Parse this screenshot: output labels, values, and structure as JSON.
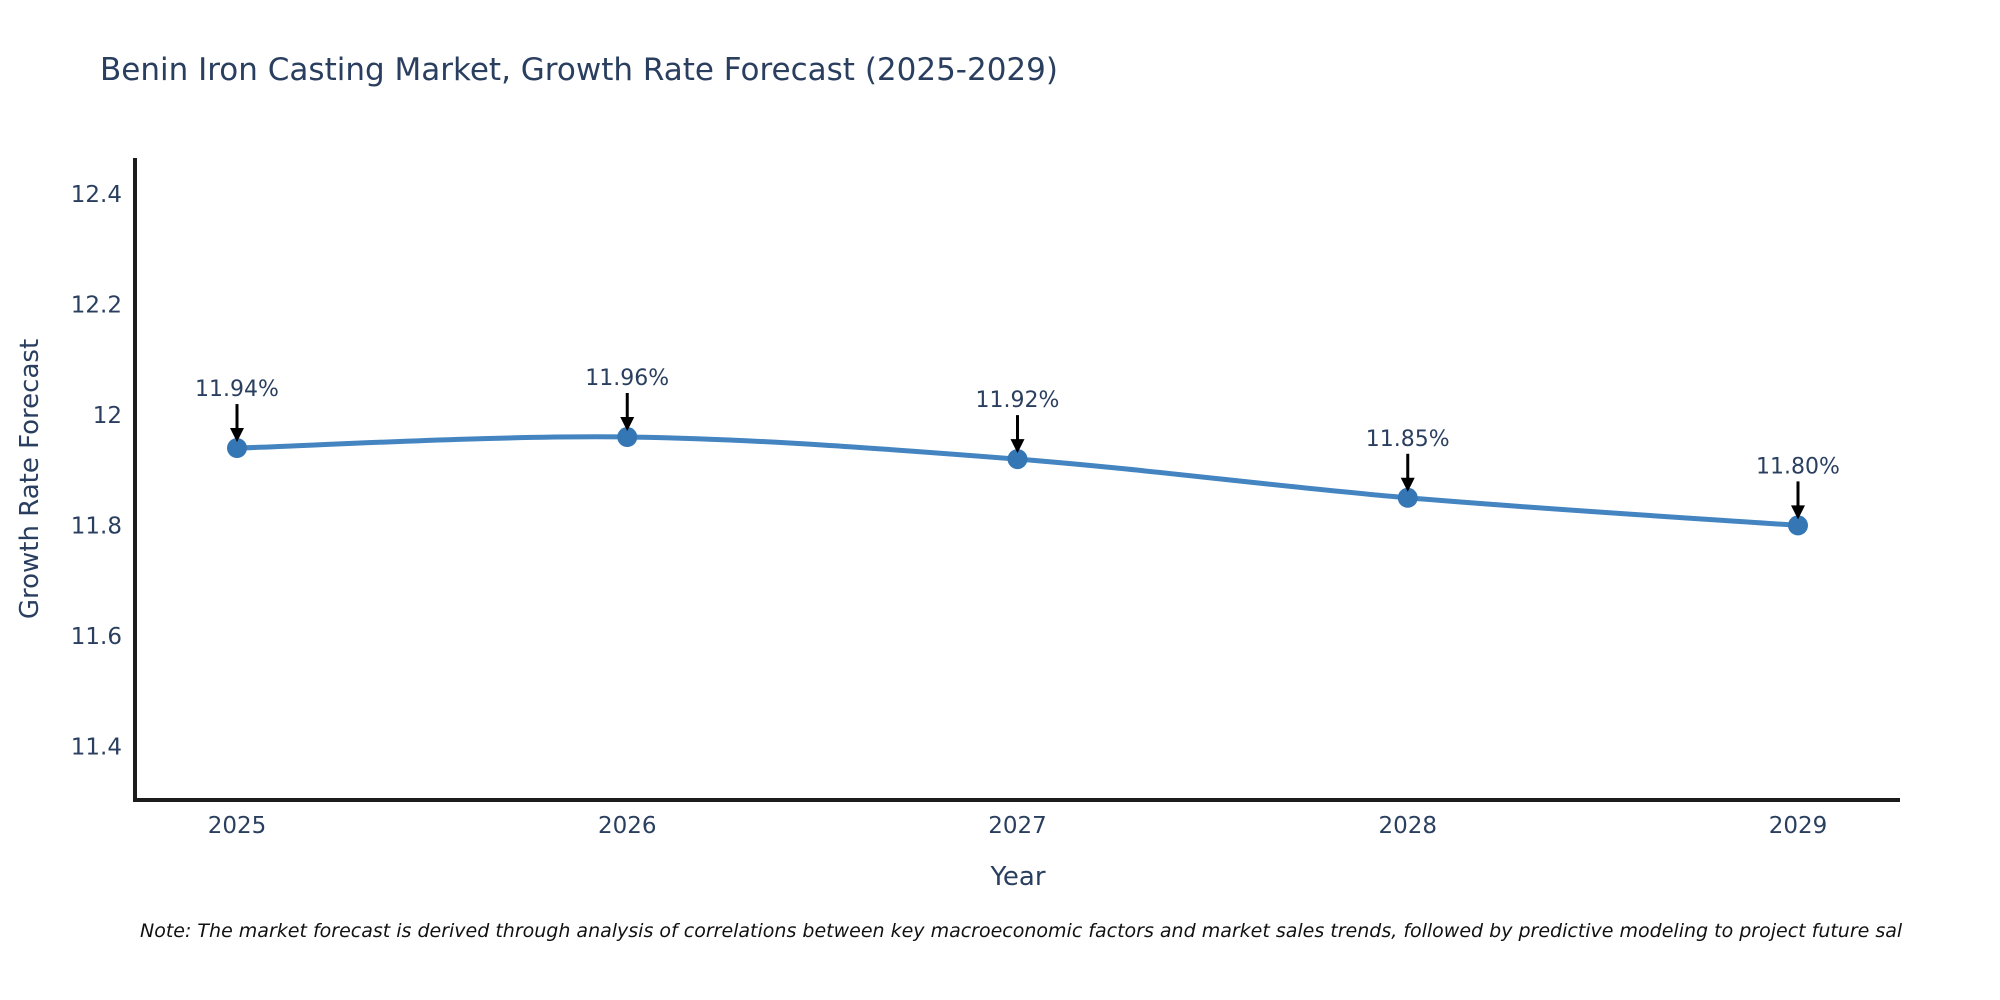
{
  "chart_data": {
    "type": "line",
    "title": "Benin Iron Casting Market, Growth Rate Forecast (2025-2029)",
    "xlabel": "Year",
    "ylabel": "Growth Rate Forecast",
    "categories": [
      "2025",
      "2026",
      "2027",
      "2028",
      "2029"
    ],
    "values": [
      11.94,
      11.96,
      11.92,
      11.85,
      11.8
    ],
    "point_labels": [
      "11.94%",
      "11.96%",
      "11.92%",
      "11.85%",
      "11.80%"
    ],
    "yticks": [
      12.4,
      12.2,
      12.0,
      11.8,
      11.6,
      11.4
    ],
    "ytick_labels": [
      "12.4",
      "12.2",
      "12",
      "11.8",
      "11.6",
      "11.4"
    ],
    "ylim": [
      11.303,
      12.465
    ],
    "grid": false,
    "legend": "none",
    "line_color": "#4384c1",
    "marker_color": "#3577b5",
    "annotation_arrow_color": "#000000",
    "axis_line_color": "#1c1c1c",
    "text_color": "#2a3f5f"
  },
  "note": {
    "text": "Note: The market forecast is derived through analysis of correlations between key macroeconomic factors and market sales trends, followed by predictive modeling to project future sal"
  }
}
